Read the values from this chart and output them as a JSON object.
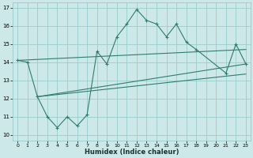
{
  "xlabel": "Humidex (Indice chaleur)",
  "x_ticks": [
    0,
    1,
    2,
    3,
    4,
    5,
    6,
    7,
    8,
    9,
    10,
    11,
    12,
    13,
    14,
    15,
    16,
    17,
    18,
    19,
    20,
    21,
    22,
    23
  ],
  "ylim": [
    9.7,
    17.3
  ],
  "xlim": [
    -0.5,
    23.5
  ],
  "y_ticks": [
    10,
    11,
    12,
    13,
    14,
    15,
    16,
    17
  ],
  "background_color": "#cce8e8",
  "grid_color": "#99cccc",
  "line_color": "#2e7d6e",
  "line1_x": [
    0,
    1,
    2,
    3,
    4,
    5,
    6,
    7,
    8,
    9,
    10,
    11,
    12,
    13,
    14,
    15,
    16,
    17,
    18,
    21,
    22,
    23
  ],
  "line1_y": [
    14.1,
    14.0,
    12.1,
    11.0,
    10.4,
    11.0,
    10.5,
    11.1,
    14.6,
    13.9,
    15.4,
    16.1,
    16.9,
    16.3,
    16.1,
    15.4,
    16.1,
    15.1,
    14.7,
    13.4,
    15.0,
    13.9
  ],
  "line2_x": [
    0,
    23
  ],
  "line2_y": [
    14.1,
    14.7
  ],
  "line3_x": [
    2,
    23
  ],
  "line3_y": [
    12.1,
    13.9
  ],
  "line4_x": [
    2,
    23
  ],
  "line4_y": [
    12.1,
    13.35
  ]
}
